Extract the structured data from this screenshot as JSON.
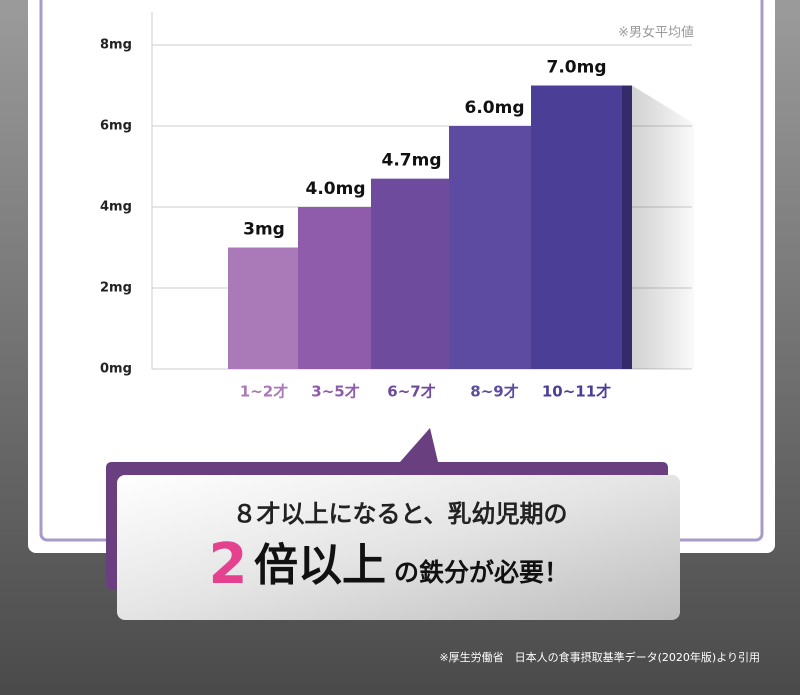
{
  "chart_data": {
    "type": "bar",
    "categories": [
      "1~2才",
      "3~5才",
      "6~7才",
      "8~9才",
      "10~11才"
    ],
    "values": [
      3,
      4.0,
      4.7,
      6.0,
      7.0
    ],
    "value_labels": [
      "3mg",
      "4.0mg",
      "4.7mg",
      "6.0mg",
      "7.0mg"
    ],
    "colors": [
      "#a97ab7",
      "#8e5cab",
      "#6f4b9d",
      "#5c4ba1",
      "#4a3e97"
    ],
    "ylim": [
      0,
      8
    ],
    "yticks": [
      {
        "value": 0,
        "label": "0mg"
      },
      {
        "value": 2,
        "label": "2mg"
      },
      {
        "value": 4,
        "label": "4mg"
      },
      {
        "value": 6,
        "label": "6mg"
      },
      {
        "value": 8,
        "label": "8mg"
      }
    ],
    "grid": true,
    "note": "※男女平均値"
  },
  "callout": {
    "line1": "８才以上になると、乳幼児期の",
    "emphasis_number": "2",
    "emphasis_text": "倍以上",
    "line2_rest": "の鉄分が必要！"
  },
  "source": "※厚生労働省　日本人の食事摂取基準データ(2020年版)より引用"
}
